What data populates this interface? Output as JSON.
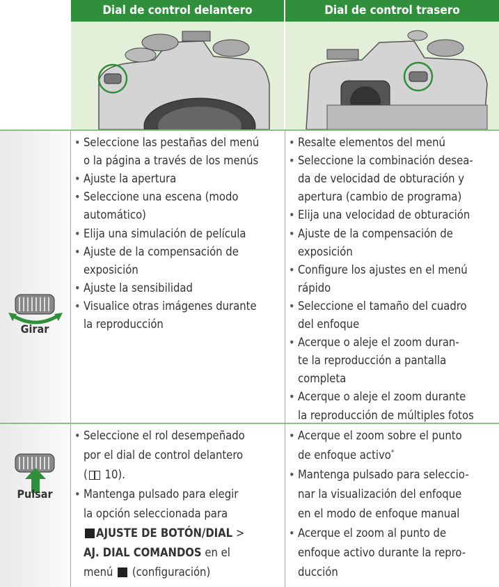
{
  "table": {
    "header": [
      "Dial de control delantero",
      "Dial de control trasero"
    ],
    "rows": [
      {
        "label": "Girar",
        "cells": [
          [
            [
              "Seleccione las pestañas del menú",
              "o la página a través de los menús"
            ],
            [
              "Ajuste la apertura"
            ],
            [
              "Seleccione una escena (modo",
              "automático)"
            ],
            [
              "Elija una simulación de película"
            ],
            [
              "Ajuste de la compensación de",
              "exposición"
            ],
            [
              "Ajuste la sensibilidad"
            ],
            [
              "Visualice otras imágenes durante",
              "la reproducción"
            ]
          ],
          [
            [
              "Resalte elementos del menú"
            ],
            [
              "Seleccione la combinación desea-",
              "da de velocidad de obturación y",
              "apertura (cambio de programa)"
            ],
            [
              "Elija una velocidad de obturación"
            ],
            [
              "Ajuste de la compensación de",
              "exposición"
            ],
            [
              "Configure los ajustes en el menú",
              "rápido"
            ],
            [
              "Seleccione el tamaño del cuadro",
              "del enfoque"
            ],
            [
              "Acerque o aleje el zoom duran-",
              "te la reproducción a pantalla",
              "completa"
            ],
            [
              "Acerque o aleje el zoom durante",
              "la reproducción de múltiples fotos"
            ]
          ]
        ]
      },
      {
        "label": "Pulsar",
        "cells": [
          [
            [
              "Seleccione el rol desempeñado",
              "por el dial de control delantero",
              [
                "(",
                {
                  "icon": "book"
                },
                " 10)."
              ]
            ],
            [
              "Mantenga pulsado para elegir",
              "la opción seleccionada para",
              [
                {
                  "icon": "setup"
                },
                {
                  "text": "AJUSTE DE BOTÓN/DIAL",
                  "bold": true
                },
                " >"
              ],
              [
                {
                  "text": "AJ. DIAL COMANDOS",
                  "bold": true
                },
                " en el"
              ],
              [
                "menú ",
                {
                  "icon": "setup"
                },
                " (configuración)"
              ]
            ]
          ],
          [
            [
              "Acerque el zoom sobre el punto",
              [
                "de enfoque activo",
                {
                  "text": "*",
                  "sup": true
                }
              ]
            ],
            [
              "Mantenga pulsado para seleccio-",
              "nar la visualización del enfoque",
              "en el modo de enfoque manual"
            ],
            [
              "Acerque el zoom al punto de",
              "enfoque activo durante la repro-",
              "ducción"
            ]
          ]
        ]
      }
    ]
  }
}
